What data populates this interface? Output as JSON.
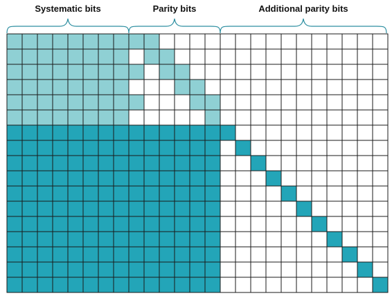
{
  "headers": {
    "systematic": "Systematic bits",
    "parity": "Parity bits",
    "additional": "Additional parity bits"
  },
  "matrix": {
    "rows": 17,
    "cols": 25,
    "systematic_cols": 8,
    "parity_cols": 6,
    "core_rows": 6,
    "colors": {
      "core": "#8fd0d4",
      "extension": "#23a5b8",
      "empty": "#ffffff",
      "grid": "#1a1a1a",
      "brace": "#2c8ea0"
    },
    "core_parity_pattern": [
      [
        1,
        1,
        0,
        0,
        0,
        0
      ],
      [
        0,
        1,
        1,
        0,
        0,
        0
      ],
      [
        1,
        0,
        1,
        1,
        0,
        0
      ],
      [
        0,
        0,
        0,
        1,
        1,
        0
      ],
      [
        1,
        0,
        0,
        0,
        1,
        1
      ],
      [
        0,
        0,
        0,
        0,
        0,
        1
      ]
    ]
  }
}
